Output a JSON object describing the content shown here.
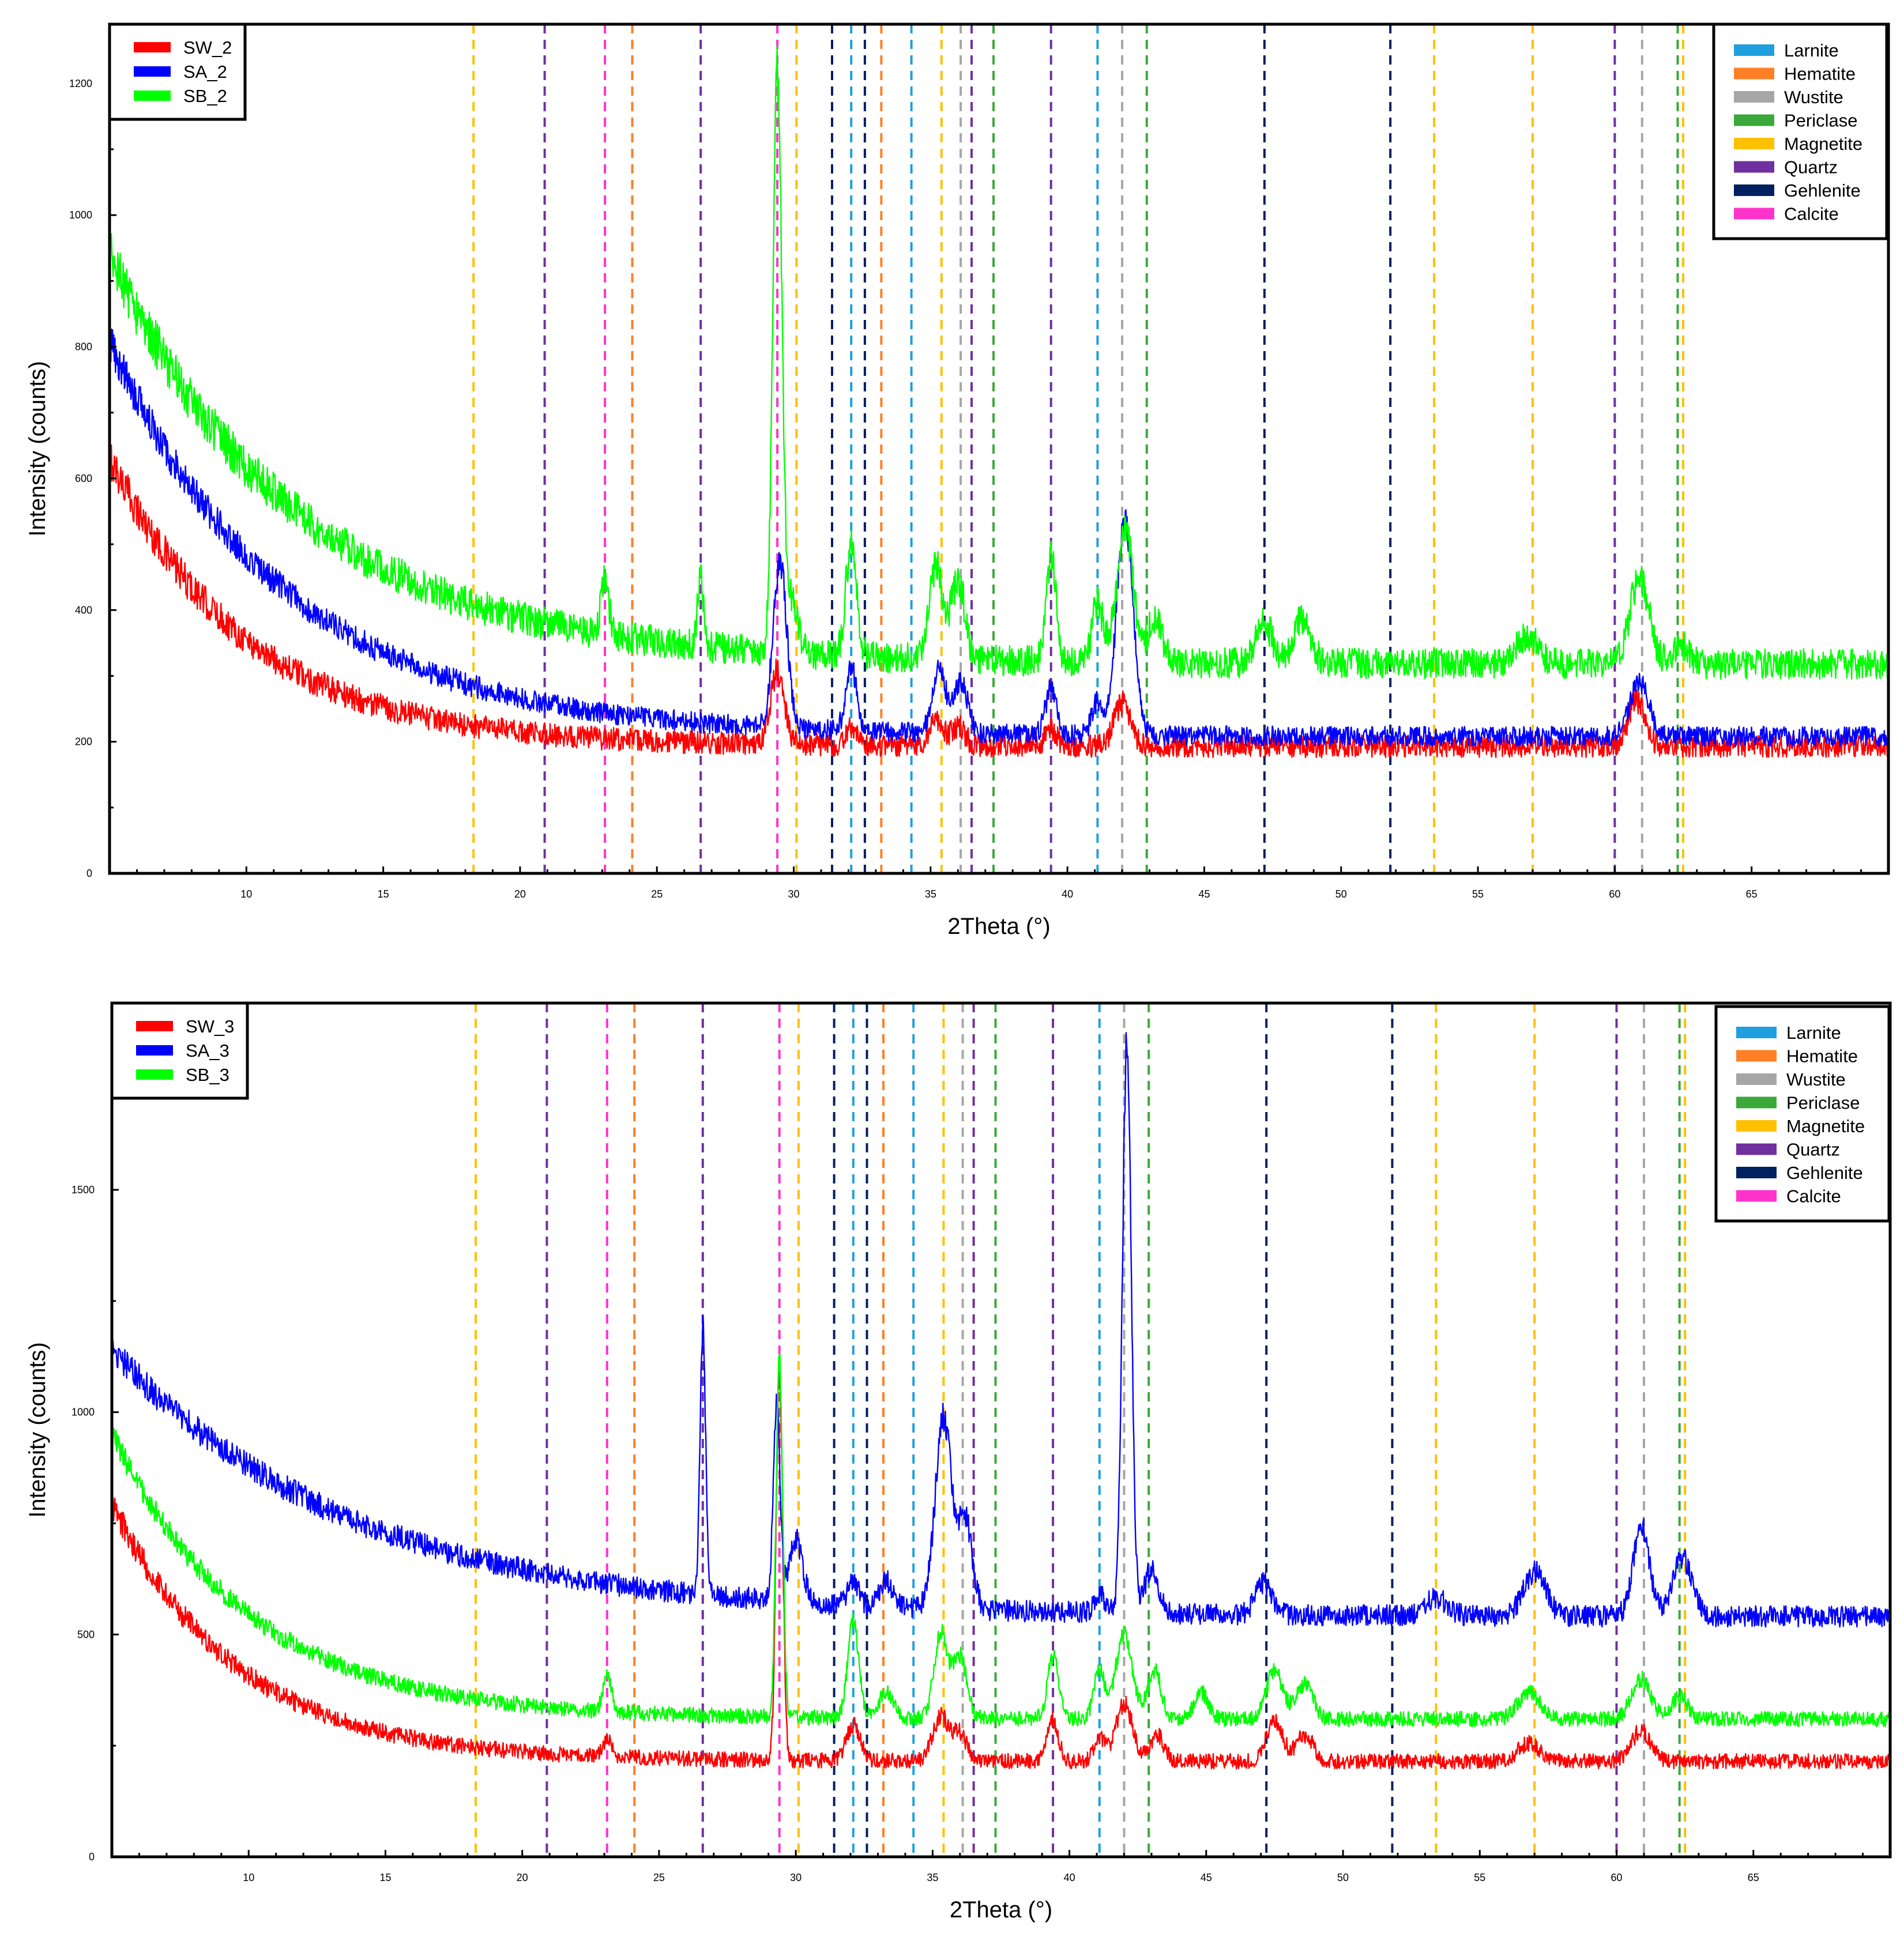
{
  "chart_data": [
    {
      "type": "line",
      "panel": "top",
      "xlabel": "2Theta (°)",
      "ylabel": "Intensity (counts)",
      "xlim": [
        5,
        70
      ],
      "ylim": [
        0,
        1290
      ],
      "xticks": [
        10,
        15,
        20,
        25,
        30,
        35,
        40,
        45,
        50,
        55,
        60,
        65
      ],
      "yticks": [
        0,
        200,
        400,
        600,
        800,
        1000,
        1200
      ],
      "legend_position": "top-left",
      "series": [
        {
          "name": "SW_2",
          "color": "#ff0000",
          "baseline": {
            "a": 193,
            "b": 440,
            "k": 0.2,
            "noise": 17
          },
          "peaks": [
            [
              29.4,
              110,
              0.25
            ],
            [
              32.1,
              25,
              0.2
            ],
            [
              35.2,
              40,
              0.25
            ],
            [
              36.0,
              30,
              0.25
            ],
            [
              39.4,
              25,
              0.2
            ],
            [
              42.0,
              65,
              0.3
            ],
            [
              60.8,
              70,
              0.3
            ]
          ]
        },
        {
          "name": "SA_2",
          "color": "#0000ff",
          "baseline": {
            "a": 208,
            "b": 600,
            "k": 0.155,
            "noise": 15
          },
          "peaks": [
            [
              29.5,
              250,
              0.25
            ],
            [
              32.1,
              95,
              0.2
            ],
            [
              35.3,
              100,
              0.25
            ],
            [
              36.1,
              80,
              0.25
            ],
            [
              39.4,
              70,
              0.2
            ],
            [
              41.1,
              50,
              0.2
            ],
            [
              42.1,
              330,
              0.3
            ],
            [
              60.9,
              80,
              0.35
            ]
          ]
        },
        {
          "name": "SB_2",
          "color": "#00ff00",
          "baseline": {
            "a": 318,
            "b": 620,
            "k": 0.145,
            "noise": 23
          },
          "peaks": [
            [
              23.1,
              80,
              0.15
            ],
            [
              26.6,
              100,
              0.12
            ],
            [
              29.4,
              870,
              0.16
            ],
            [
              29.9,
              80,
              0.25
            ],
            [
              32.1,
              170,
              0.2
            ],
            [
              35.2,
              140,
              0.25
            ],
            [
              36.0,
              120,
              0.25
            ],
            [
              39.4,
              160,
              0.18
            ],
            [
              41.1,
              90,
              0.2
            ],
            [
              42.1,
              200,
              0.3
            ],
            [
              43.2,
              70,
              0.25
            ],
            [
              47.2,
              60,
              0.3
            ],
            [
              48.6,
              70,
              0.3
            ],
            [
              56.8,
              40,
              0.4
            ],
            [
              60.9,
              130,
              0.35
            ],
            [
              62.4,
              30,
              0.3
            ]
          ]
        }
      ],
      "reference_lines": [
        {
          "phase": "Magnetite",
          "x": [
            18.3,
            30.1,
            35.4,
            53.4,
            57.0,
            62.5
          ]
        },
        {
          "phase": "Quartz",
          "x": [
            20.9,
            26.6,
            36.5,
            39.4,
            60.0
          ]
        },
        {
          "phase": "Calcite",
          "x": [
            23.1,
            29.4
          ]
        },
        {
          "phase": "Hematite",
          "x": [
            24.1,
            33.2
          ]
        },
        {
          "phase": "Gehlenite",
          "x": [
            31.4,
            32.6,
            47.2,
            51.8
          ]
        },
        {
          "phase": "Larnite",
          "x": [
            32.1,
            34.3,
            41.1
          ]
        },
        {
          "phase": "Wustite",
          "x": [
            36.1,
            42.0,
            61.0
          ]
        },
        {
          "phase": "Periclase",
          "x": [
            37.3,
            42.9,
            62.3
          ]
        }
      ]
    },
    {
      "type": "line",
      "panel": "bottom",
      "xlabel": "2Theta (°)",
      "ylabel": "Intensity (counts)",
      "xlim": [
        5,
        70
      ],
      "ylim": [
        0,
        1920
      ],
      "xticks": [
        10,
        15,
        20,
        25,
        30,
        35,
        40,
        45,
        50,
        55,
        60,
        65
      ],
      "yticks": [
        0,
        500,
        1000,
        1500
      ],
      "legend_position": "top-left",
      "series": [
        {
          "name": "SW_3",
          "color": "#ff0000",
          "baseline": {
            "a": 215,
            "b": 580,
            "k": 0.22,
            "noise": 17
          },
          "peaks": [
            [
              23.1,
              40,
              0.15
            ],
            [
              29.4,
              880,
              0.12
            ],
            [
              32.1,
              80,
              0.25
            ],
            [
              35.3,
              100,
              0.3
            ],
            [
              36.0,
              60,
              0.25
            ],
            [
              39.4,
              90,
              0.2
            ],
            [
              41.1,
              50,
              0.2
            ],
            [
              42.0,
              130,
              0.3
            ],
            [
              43.2,
              60,
              0.25
            ],
            [
              47.5,
              90,
              0.3
            ],
            [
              48.6,
              60,
              0.3
            ],
            [
              56.8,
              40,
              0.4
            ],
            [
              60.9,
              70,
              0.35
            ]
          ]
        },
        {
          "name": "SA_3",
          "color": "#0000ff",
          "baseline": {
            "a": 540,
            "b": 600,
            "k": 0.115,
            "noise": 24
          },
          "peaks": [
            [
              26.6,
              600,
              0.1
            ],
            [
              29.3,
              460,
              0.12
            ],
            [
              30.0,
              140,
              0.25
            ],
            [
              32.1,
              50,
              0.2
            ],
            [
              33.3,
              60,
              0.25
            ],
            [
              35.4,
              430,
              0.3
            ],
            [
              36.2,
              200,
              0.25
            ],
            [
              41.1,
              40,
              0.2
            ],
            [
              42.1,
              1290,
              0.16
            ],
            [
              43.0,
              100,
              0.25
            ],
            [
              47.1,
              70,
              0.3
            ],
            [
              53.4,
              40,
              0.4
            ],
            [
              57.0,
              100,
              0.4
            ],
            [
              60.9,
              200,
              0.3
            ],
            [
              62.4,
              130,
              0.35
            ]
          ]
        },
        {
          "name": "SB_3",
          "color": "#00ff00",
          "baseline": {
            "a": 310,
            "b": 640,
            "k": 0.2,
            "noise": 17
          },
          "peaks": [
            [
              23.1,
              90,
              0.15
            ],
            [
              29.4,
              800,
              0.12
            ],
            [
              32.1,
              220,
              0.2
            ],
            [
              33.3,
              60,
              0.25
            ],
            [
              35.3,
              190,
              0.25
            ],
            [
              36.0,
              140,
              0.25
            ],
            [
              39.4,
              140,
              0.2
            ],
            [
              41.1,
              110,
              0.2
            ],
            [
              42.0,
              190,
              0.3
            ],
            [
              43.1,
              110,
              0.25
            ],
            [
              44.8,
              60,
              0.25
            ],
            [
              47.5,
              110,
              0.3
            ],
            [
              48.6,
              80,
              0.3
            ],
            [
              56.8,
              60,
              0.4
            ],
            [
              60.9,
              90,
              0.35
            ],
            [
              62.3,
              50,
              0.3
            ]
          ]
        }
      ],
      "reference_lines": [
        {
          "phase": "Magnetite",
          "x": [
            18.3,
            30.1,
            35.4,
            53.4,
            57.0,
            62.5
          ]
        },
        {
          "phase": "Quartz",
          "x": [
            20.9,
            26.6,
            36.5,
            39.4,
            60.0
          ]
        },
        {
          "phase": "Calcite",
          "x": [
            23.1,
            29.4
          ]
        },
        {
          "phase": "Hematite",
          "x": [
            24.1,
            33.2
          ]
        },
        {
          "phase": "Gehlenite",
          "x": [
            31.4,
            32.6,
            47.2,
            51.8
          ]
        },
        {
          "phase": "Larnite",
          "x": [
            32.1,
            34.3,
            41.1
          ]
        },
        {
          "phase": "Wustite",
          "x": [
            36.1,
            42.0,
            61.0
          ]
        },
        {
          "phase": "Periclase",
          "x": [
            37.3,
            42.9,
            62.3
          ]
        }
      ]
    }
  ],
  "phase_legend": [
    {
      "name": "Larnite",
      "color": "#1f9fde"
    },
    {
      "name": "Hematite",
      "color": "#ff7f27"
    },
    {
      "name": "Wustite",
      "color": "#a6a6a6"
    },
    {
      "name": "Periclase",
      "color": "#3aa83a"
    },
    {
      "name": "Magnetite",
      "color": "#ffc000"
    },
    {
      "name": "Quartz",
      "color": "#7030a0"
    },
    {
      "name": "Gehlenite",
      "color": "#002060"
    },
    {
      "name": "Calcite",
      "color": "#ff33cc"
    }
  ]
}
